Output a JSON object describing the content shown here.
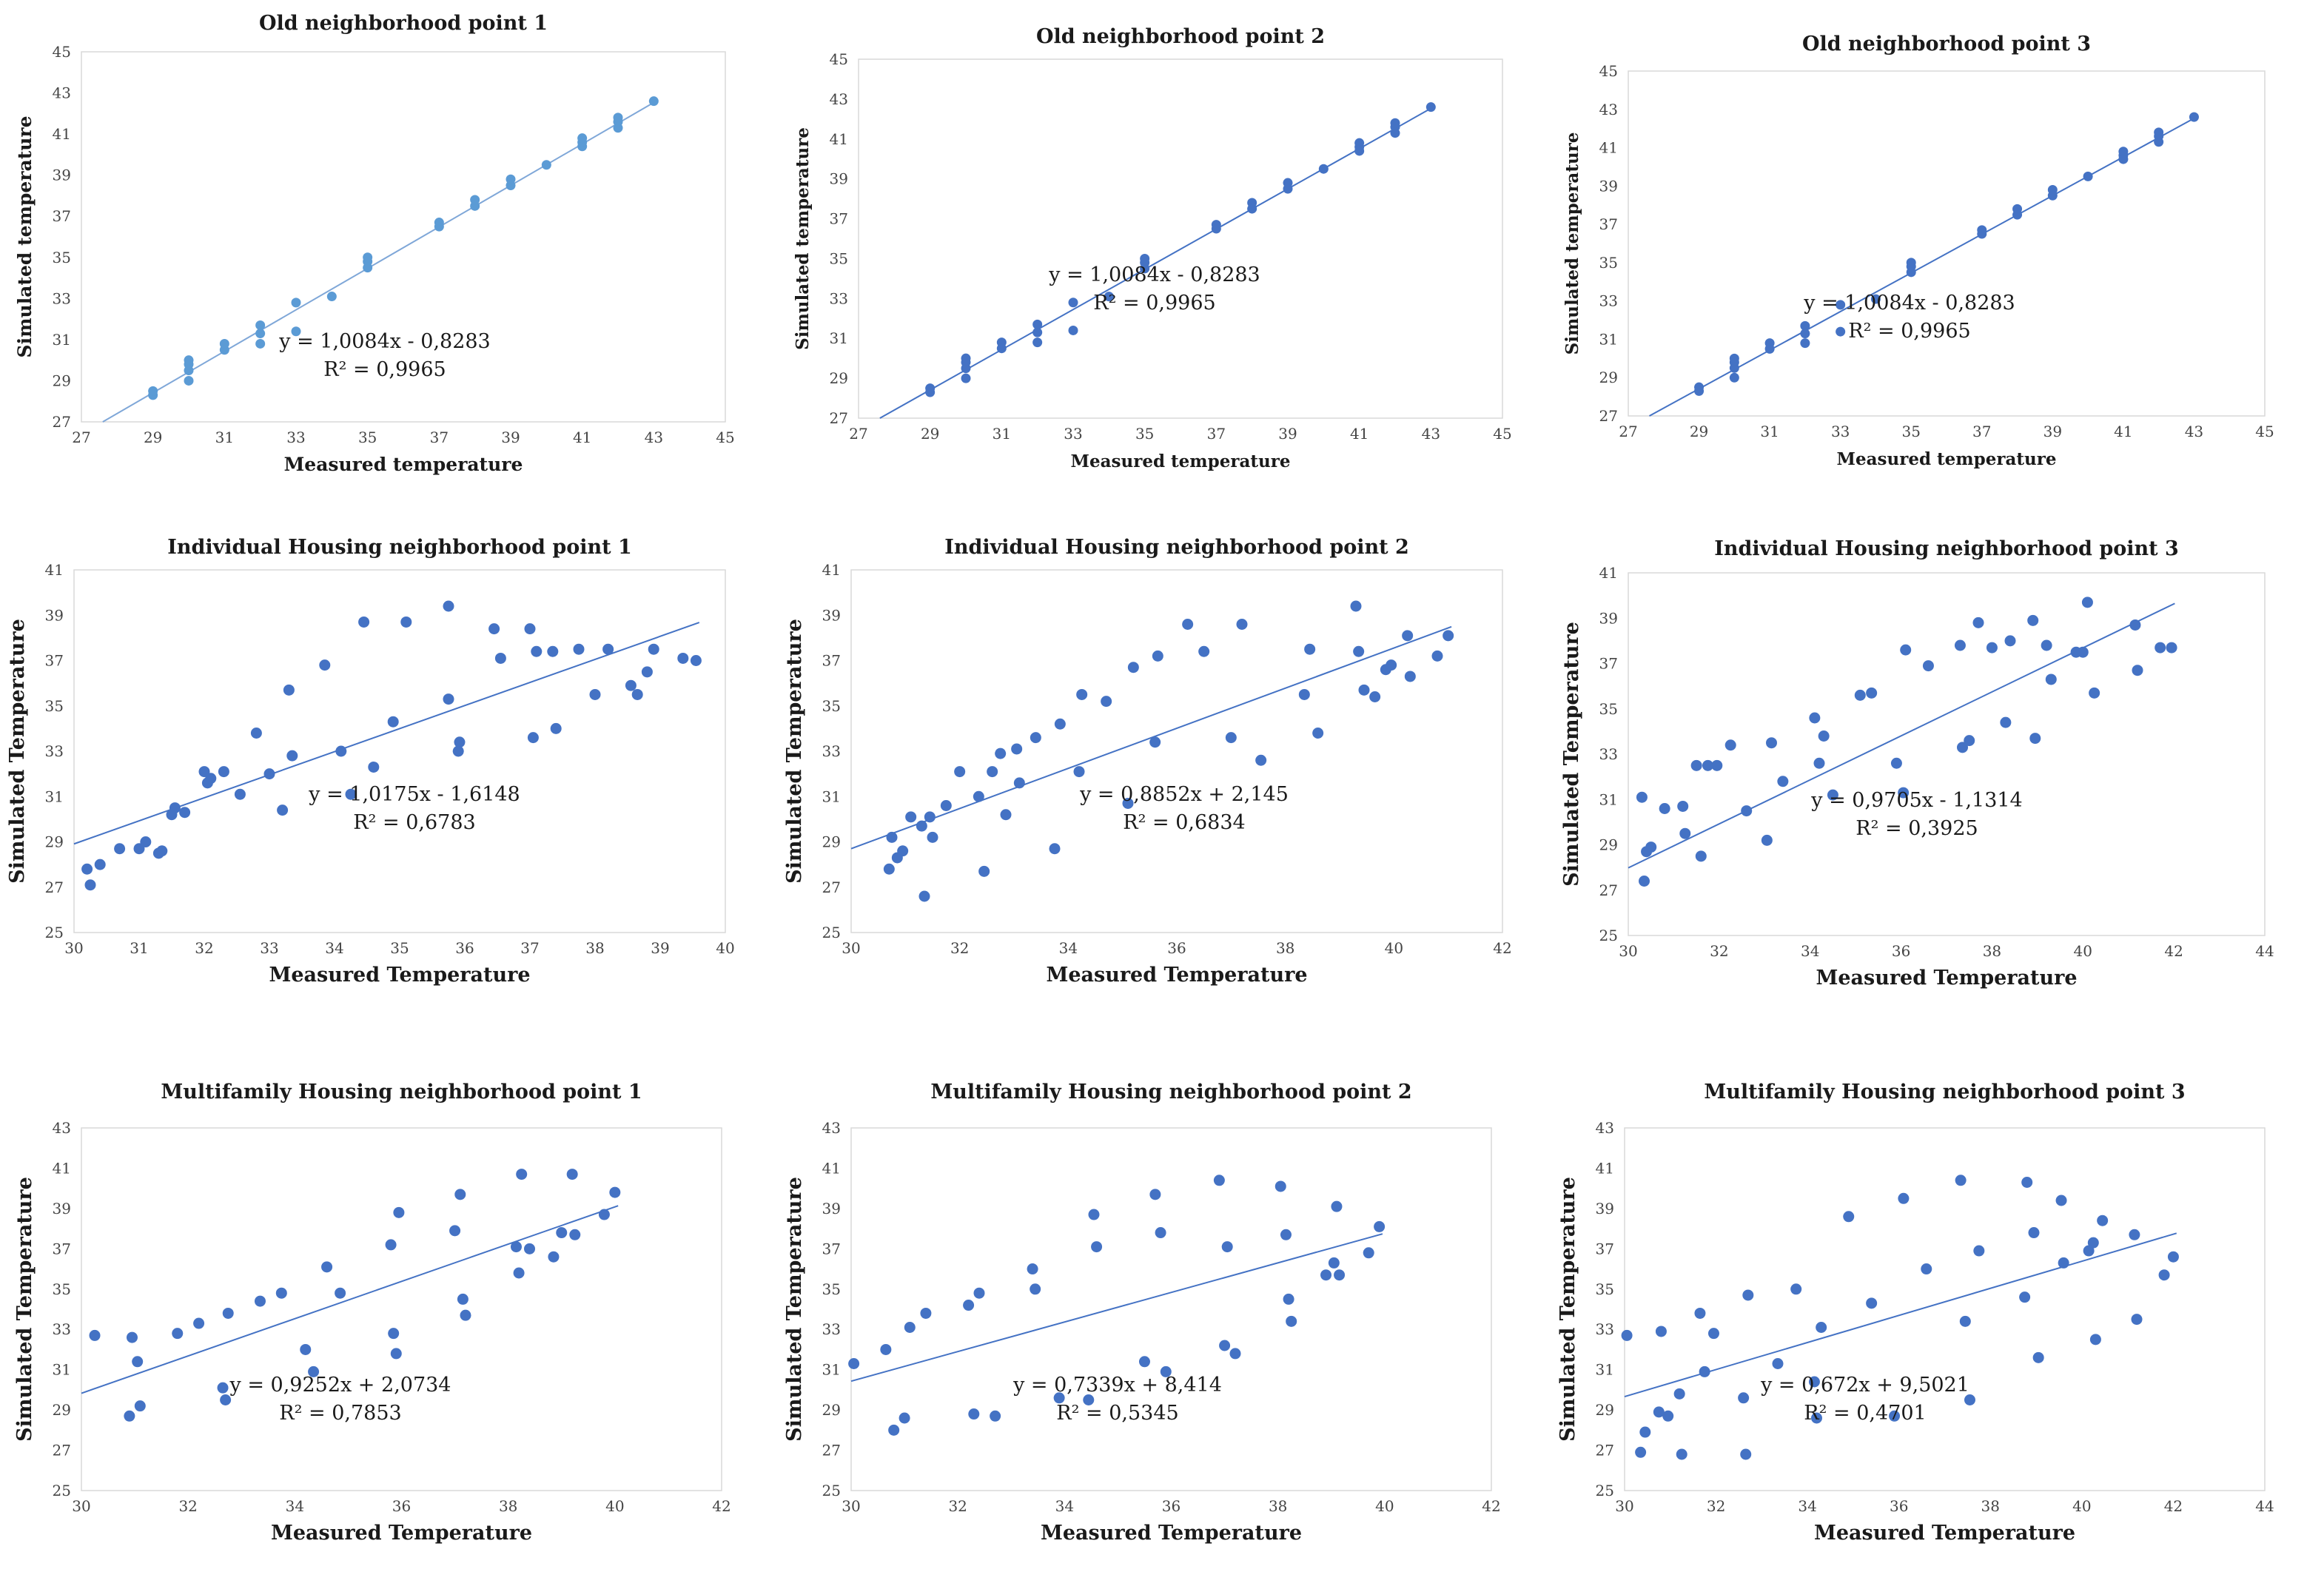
{
  "figure": {
    "point_color": "#4472c4",
    "point_color_light": "#5b9bd5",
    "trend_color": "#4472c4",
    "trend_color_light": "#7fa7d8",
    "plot_border_color": "#d9d9d9"
  },
  "chart_data": [
    {
      "type": "scatter",
      "title": "Old neighborhood point 1",
      "xlabel": "Measured temperature",
      "ylabel": "Simulated temperature",
      "xlim": [
        27,
        45
      ],
      "ylim": [
        27,
        45
      ],
      "xticks": [
        "27",
        "29",
        "31",
        "33",
        "35",
        "37",
        "39",
        "41",
        "43",
        "45"
      ],
      "yticks": [
        "27",
        "29",
        "31",
        "33",
        "35",
        "37",
        "39",
        "41",
        "43",
        "45"
      ],
      "trendline": {
        "slope": 1.0084,
        "intercept": -0.8283
      },
      "equation": "y = 1,0084x - 0,8283",
      "r2": "R² = 0,9965",
      "x": [
        29,
        29,
        30,
        30,
        30,
        30,
        31,
        31,
        32,
        32,
        32,
        33,
        33,
        34,
        35,
        35,
        35,
        37,
        37,
        38,
        38,
        39,
        39,
        40,
        41,
        41,
        41,
        42,
        42,
        42,
        43
      ],
      "y": [
        28.3,
        28.5,
        29.0,
        29.5,
        29.8,
        30.0,
        30.5,
        30.8,
        30.8,
        31.3,
        31.7,
        31.4,
        32.8,
        33.1,
        34.5,
        34.8,
        35.0,
        36.5,
        36.7,
        37.5,
        37.8,
        38.5,
        38.8,
        39.5,
        40.4,
        40.6,
        40.8,
        41.3,
        41.6,
        41.8,
        42.6
      ]
    },
    {
      "type": "scatter",
      "title": "Old neighborhood point 2",
      "xlabel": "Measured temperature",
      "ylabel": "Simulated temperature",
      "xlim": [
        27,
        45
      ],
      "ylim": [
        27,
        45
      ],
      "xticks": [
        "27",
        "29",
        "31",
        "33",
        "35",
        "37",
        "39",
        "41",
        "43",
        "45"
      ],
      "yticks": [
        "27",
        "29",
        "31",
        "33",
        "35",
        "37",
        "39",
        "41",
        "43",
        "45"
      ],
      "trendline": {
        "slope": 1.0084,
        "intercept": -0.8283
      },
      "equation": "y = 1,0084x - 0,8283",
      "r2": "R² = 0,9965",
      "x": [
        29,
        29,
        30,
        30,
        30,
        30,
        31,
        31,
        32,
        32,
        32,
        33,
        33,
        34,
        35,
        35,
        35,
        37,
        37,
        38,
        38,
        39,
        39,
        40,
        41,
        41,
        41,
        42,
        42,
        42,
        43
      ],
      "y": [
        28.3,
        28.5,
        29.0,
        29.5,
        29.8,
        30.0,
        30.5,
        30.8,
        30.8,
        31.3,
        31.7,
        31.4,
        32.8,
        33.1,
        34.5,
        34.8,
        35.0,
        36.5,
        36.7,
        37.5,
        37.8,
        38.5,
        38.8,
        39.5,
        40.4,
        40.6,
        40.8,
        41.3,
        41.6,
        41.8,
        42.6
      ]
    },
    {
      "type": "scatter",
      "title": "Old neighborhood point 3",
      "xlabel": "Measured temperature",
      "ylabel": "Simulated temperature",
      "xlim": [
        27,
        45
      ],
      "ylim": [
        27,
        45
      ],
      "xticks": [
        "27",
        "29",
        "31",
        "33",
        "35",
        "37",
        "39",
        "41",
        "43",
        "45"
      ],
      "yticks": [
        "27",
        "29",
        "31",
        "33",
        "35",
        "37",
        "39",
        "41",
        "43",
        "45"
      ],
      "trendline": {
        "slope": 1.0084,
        "intercept": -0.8283
      },
      "equation": "y = 1,0084x - 0,8283",
      "r2": "R² = 0,9965",
      "x": [
        29,
        29,
        30,
        30,
        30,
        30,
        31,
        31,
        32,
        32,
        32,
        33,
        33,
        34,
        35,
        35,
        35,
        37,
        37,
        38,
        38,
        39,
        39,
        40,
        41,
        41,
        41,
        42,
        42,
        42,
        43
      ],
      "y": [
        28.3,
        28.5,
        29.0,
        29.5,
        29.8,
        30.0,
        30.5,
        30.8,
        30.8,
        31.3,
        31.7,
        31.4,
        32.8,
        33.1,
        34.5,
        34.8,
        35.0,
        36.5,
        36.7,
        37.5,
        37.8,
        38.5,
        38.8,
        39.5,
        40.4,
        40.6,
        40.8,
        41.3,
        41.6,
        41.8,
        42.6
      ]
    },
    {
      "type": "scatter",
      "title": "Individual Housing neighborhood point 1",
      "xlabel": "Measured Temperature",
      "ylabel": "Simulated Temperature",
      "xlim": [
        30,
        40
      ],
      "ylim": [
        25,
        41
      ],
      "xticks": [
        "30",
        "31",
        "32",
        "33",
        "34",
        "35",
        "36",
        "37",
        "38",
        "39",
        "40"
      ],
      "yticks": [
        "25",
        "27",
        "29",
        "31",
        "33",
        "35",
        "37",
        "39",
        "41"
      ],
      "trendline": {
        "slope": 1.0175,
        "intercept": -1.6148
      },
      "equation": "y = 1,0175x - 1,6148",
      "r2": "R² = 0,6783",
      "x": [
        30.2,
        30.25,
        30.4,
        30.7,
        31.0,
        31.1,
        31.3,
        31.35,
        31.5,
        31.55,
        31.7,
        32.0,
        32.05,
        32.1,
        32.3,
        32.55,
        32.8,
        33.0,
        33.2,
        33.3,
        33.35,
        33.85,
        34.1,
        34.25,
        34.45,
        34.6,
        34.9,
        35.1,
        35.75,
        35.75,
        35.9,
        35.92,
        36.45,
        36.55,
        37.0,
        37.05,
        37.1,
        37.35,
        37.4,
        37.75,
        38.0,
        38.2,
        38.55,
        38.65,
        38.8,
        38.9,
        39.35,
        39.55
      ],
      "y": [
        27.8,
        27.1,
        28.0,
        28.7,
        28.7,
        29.0,
        28.5,
        28.6,
        30.2,
        30.5,
        30.3,
        32.1,
        31.6,
        31.8,
        32.1,
        31.1,
        33.8,
        32.0,
        30.4,
        35.7,
        32.8,
        36.8,
        33.0,
        31.1,
        38.7,
        32.3,
        34.3,
        38.7,
        35.3,
        39.4,
        33.0,
        33.4,
        38.4,
        37.1,
        38.4,
        33.6,
        37.4,
        37.4,
        34.0,
        37.5,
        35.5,
        37.5,
        35.9,
        35.5,
        36.5,
        37.5,
        37.1,
        37.0
      ]
    },
    {
      "type": "scatter",
      "title": "Individual Housing neighborhood point 2",
      "xlabel": "Measured Temperature",
      "ylabel": "Simulated Temperature",
      "xlim": [
        30,
        42
      ],
      "ylim": [
        25,
        41
      ],
      "xticks": [
        "30",
        "32",
        "34",
        "36",
        "38",
        "40",
        "42"
      ],
      "yticks": [
        "25",
        "27",
        "29",
        "31",
        "33",
        "35",
        "37",
        "39",
        "41"
      ],
      "trendline": {
        "slope": 0.8852,
        "intercept": 2.145
      },
      "equation": "y = 0,8852x + 2,145",
      "r2": "R² = 0,6834",
      "x": [
        30.7,
        30.75,
        30.85,
        30.95,
        31.1,
        31.3,
        31.35,
        31.45,
        31.5,
        31.75,
        32.0,
        32.35,
        32.45,
        32.6,
        32.75,
        32.85,
        33.05,
        33.1,
        33.4,
        33.75,
        33.85,
        34.2,
        34.25,
        34.7,
        35.1,
        35.2,
        35.6,
        35.65,
        36.2,
        36.5,
        37.0,
        37.2,
        37.55,
        38.35,
        38.45,
        38.6,
        39.3,
        39.35,
        39.45,
        39.65,
        39.85,
        39.95,
        40.25,
        40.3,
        40.8,
        41.0
      ],
      "y": [
        27.8,
        29.2,
        28.3,
        28.6,
        30.1,
        29.7,
        26.6,
        30.1,
        29.2,
        30.6,
        32.1,
        31.0,
        27.7,
        32.1,
        32.9,
        30.2,
        33.1,
        31.6,
        33.6,
        28.7,
        34.2,
        32.1,
        35.5,
        35.2,
        30.7,
        36.7,
        33.4,
        37.2,
        38.6,
        37.4,
        33.6,
        38.6,
        32.6,
        35.5,
        37.5,
        33.8,
        39.4,
        37.4,
        35.7,
        35.4,
        36.6,
        36.8,
        38.1,
        36.3,
        37.2,
        38.1
      ]
    },
    {
      "type": "scatter",
      "title": "Individual Housing neighborhood point 3",
      "xlabel": "Measured Temperature",
      "ylabel": "Simulated Temperature",
      "xlim": [
        30,
        44
      ],
      "ylim": [
        25,
        41
      ],
      "xticks": [
        "30",
        "32",
        "34",
        "36",
        "38",
        "40",
        "42",
        "44"
      ],
      "yticks": [
        "25",
        "27",
        "29",
        "31",
        "33",
        "35",
        "37",
        "39",
        "41"
      ],
      "trendline": {
        "slope": 0.9705,
        "intercept": -1.1314
      },
      "equation": "y = 0,9705x - 1,1314",
      "r2": "R² = 0,3925",
      "x": [
        30.3,
        30.35,
        30.4,
        30.5,
        30.8,
        31.2,
        31.25,
        31.5,
        31.6,
        31.75,
        31.95,
        32.25,
        32.6,
        33.05,
        33.15,
        33.4,
        34.1,
        34.2,
        34.3,
        34.5,
        35.1,
        35.35,
        35.9,
        36.05,
        36.1,
        36.6,
        37.3,
        37.35,
        37.5,
        37.7,
        38.0,
        38.3,
        38.4,
        38.9,
        38.95,
        39.2,
        39.3,
        39.85,
        40.0,
        40.1,
        40.25,
        41.15,
        41.2,
        41.7,
        41.95
      ],
      "y": [
        31.1,
        27.4,
        28.7,
        28.9,
        30.6,
        30.7,
        29.5,
        32.5,
        28.5,
        32.5,
        32.5,
        33.4,
        30.5,
        29.2,
        33.5,
        31.8,
        34.6,
        32.6,
        33.8,
        31.2,
        35.6,
        35.7,
        32.6,
        31.3,
        37.6,
        36.9,
        37.8,
        33.3,
        33.6,
        38.8,
        37.7,
        34.4,
        38.0,
        38.9,
        33.7,
        37.8,
        36.3,
        37.5,
        37.5,
        39.7,
        35.7,
        38.7,
        36.7,
        37.7,
        37.7
      ]
    },
    {
      "type": "scatter",
      "title": "Multifamily Housing neighborhood point 1",
      "xlabel": "Measured Temperature",
      "ylabel": "Simulated Temperature",
      "xlim": [
        30,
        42
      ],
      "ylim": [
        25,
        43
      ],
      "xticks": [
        "30",
        "32",
        "34",
        "36",
        "38",
        "40",
        "42"
      ],
      "yticks": [
        "25",
        "27",
        "29",
        "31",
        "33",
        "35",
        "37",
        "39",
        "41",
        "43"
      ],
      "trendline": {
        "slope": 0.9252,
        "intercept": 2.0734
      },
      "equation": "y = 0,9252x + 2,0734",
      "r2": "R² = 0,7853",
      "x": [
        30.25,
        30.9,
        30.95,
        31.05,
        31.1,
        31.8,
        32.2,
        32.65,
        32.7,
        32.75,
        33.35,
        33.75,
        34.2,
        34.35,
        34.6,
        34.85,
        35.8,
        35.85,
        35.9,
        35.95,
        37.0,
        37.1,
        37.15,
        37.2,
        38.15,
        38.2,
        38.25,
        38.4,
        38.85,
        39.0,
        39.25,
        39.2,
        39.8,
        40.0
      ],
      "y": [
        32.7,
        28.7,
        32.6,
        31.4,
        29.2,
        32.8,
        33.3,
        30.1,
        29.5,
        33.8,
        34.4,
        34.8,
        32.0,
        30.9,
        36.1,
        34.8,
        37.2,
        32.8,
        31.8,
        38.8,
        37.9,
        39.7,
        34.5,
        33.7,
        37.1,
        35.8,
        40.7,
        37.0,
        36.6,
        37.8,
        37.7,
        40.7,
        38.7,
        39.8
      ]
    },
    {
      "type": "scatter",
      "title": "Multifamily Housing neighborhood point 2",
      "xlabel": "Measured Temperature",
      "ylabel": "Simulated Temperature",
      "xlim": [
        30,
        42
      ],
      "ylim": [
        25,
        43
      ],
      "xticks": [
        "30",
        "32",
        "34",
        "36",
        "38",
        "40",
        "42"
      ],
      "yticks": [
        "25",
        "27",
        "29",
        "31",
        "33",
        "35",
        "37",
        "39",
        "41",
        "43"
      ],
      "trendline": {
        "slope": 0.7339,
        "intercept": 8.414
      },
      "equation": "y = 0,7339x + 8,414",
      "r2": "R² = 0,5345",
      "x": [
        30.05,
        30.65,
        30.8,
        31.0,
        31.1,
        31.4,
        32.2,
        32.3,
        32.4,
        32.7,
        33.4,
        33.45,
        33.9,
        34.45,
        34.55,
        34.6,
        35.5,
        35.7,
        35.8,
        35.9,
        36.9,
        37.0,
        37.05,
        37.2,
        38.05,
        38.15,
        38.2,
        38.25,
        38.9,
        39.05,
        39.1,
        39.15,
        39.7,
        39.9
      ],
      "y": [
        31.3,
        32.0,
        28.0,
        28.6,
        33.1,
        33.8,
        34.2,
        28.8,
        34.8,
        28.7,
        36.0,
        35.0,
        29.6,
        29.5,
        38.7,
        37.1,
        31.4,
        39.7,
        37.8,
        30.9,
        40.4,
        32.2,
        37.1,
        31.8,
        40.1,
        37.7,
        34.5,
        33.4,
        35.7,
        36.3,
        39.1,
        35.7,
        36.8,
        38.1
      ]
    },
    {
      "type": "scatter",
      "title": "Multifamily Housing neighborhood point 3",
      "xlabel": "Measured Temperature",
      "ylabel": "Simulated Temperature",
      "xlim": [
        30,
        44
      ],
      "ylim": [
        25,
        43
      ],
      "xticks": [
        "30",
        "32",
        "34",
        "36",
        "38",
        "40",
        "42",
        "44"
      ],
      "yticks": [
        "25",
        "27",
        "29",
        "31",
        "33",
        "35",
        "37",
        "39",
        "41",
        "43"
      ],
      "trendline": {
        "slope": 0.672,
        "intercept": 9.5021
      },
      "equation": "y = 0,672x + 9,5021",
      "r2": "R² = 0,4701",
      "x": [
        30.05,
        30.35,
        30.45,
        30.75,
        30.8,
        30.95,
        31.2,
        31.25,
        31.65,
        31.75,
        31.95,
        32.6,
        32.65,
        32.7,
        33.35,
        33.75,
        34.15,
        34.2,
        34.3,
        34.9,
        35.4,
        35.9,
        36.1,
        36.6,
        37.35,
        37.45,
        37.55,
        37.75,
        38.75,
        38.8,
        38.95,
        39.05,
        39.55,
        39.6,
        40.15,
        40.25,
        40.3,
        40.45,
        41.15,
        41.2,
        41.8,
        42.0
      ],
      "y": [
        32.7,
        26.9,
        27.9,
        28.9,
        32.9,
        28.7,
        29.8,
        26.8,
        33.8,
        30.9,
        32.8,
        29.6,
        26.8,
        34.7,
        31.3,
        35.0,
        30.4,
        28.6,
        33.1,
        38.6,
        34.3,
        28.7,
        39.5,
        36.0,
        40.4,
        33.4,
        29.5,
        36.9,
        34.6,
        40.3,
        37.8,
        31.6,
        39.4,
        36.3,
        36.9,
        37.3,
        32.5,
        38.4,
        37.7,
        33.5,
        35.7,
        36.6
      ]
    }
  ]
}
